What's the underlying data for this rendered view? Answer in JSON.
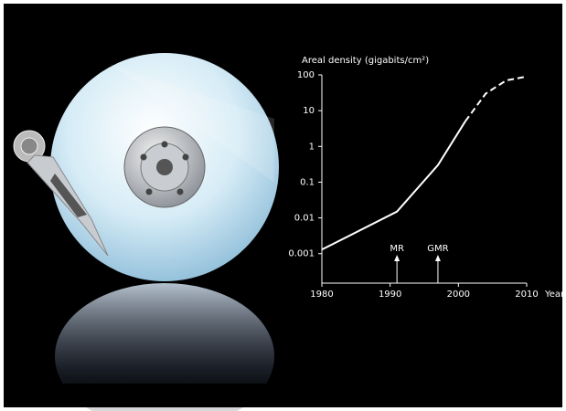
{
  "chart_data": {
    "type": "line",
    "ylabel": "Areal density (gigabits/cm²)",
    "xlabel": "Year",
    "yscale": "log",
    "xlim": [
      1980,
      2010
    ],
    "xticks": [
      1980,
      1990,
      2000,
      2010
    ],
    "ylim": [
      0.00015,
      100
    ],
    "yticks": [
      0.001,
      0.01,
      0.1,
      1,
      10,
      100
    ],
    "series": [
      {
        "color": "#ffffff",
        "style": "solid",
        "x": [
          1980,
          1991,
          1997,
          2001
        ],
        "values": [
          0.0013,
          0.015,
          0.3,
          5
        ]
      },
      {
        "color": "#ffffff",
        "style": "dashed",
        "x": [
          2001,
          2004,
          2007,
          2010
        ],
        "values": [
          5,
          30,
          70,
          90
        ]
      }
    ],
    "annotations": [
      {
        "text": "MR",
        "x": 1991
      },
      {
        "text": "GMR",
        "x": 1997
      }
    ]
  }
}
